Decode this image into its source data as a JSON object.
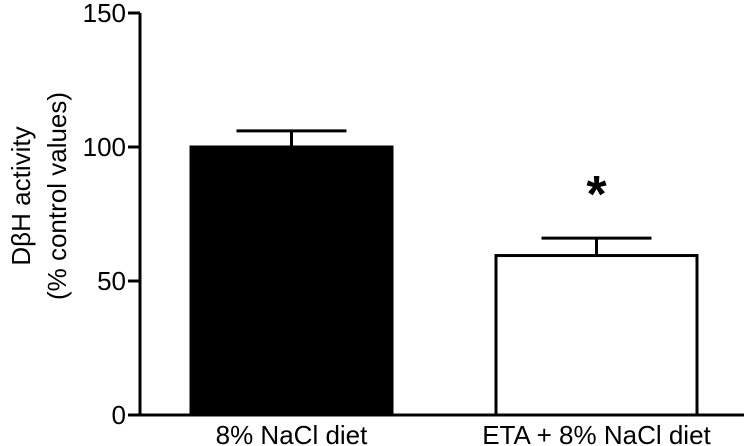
{
  "chart_data": {
    "type": "bar",
    "ylabel_lines": [
      "DβH activity",
      "(% control values)"
    ],
    "xlabel": "",
    "ylim": [
      0,
      150
    ],
    "yticks": [
      0,
      50,
      100,
      150
    ],
    "categories": [
      "8% NaCl diet",
      "ETA + 8% NaCl diet"
    ],
    "values": [
      100,
      59.5
    ],
    "errors": [
      6,
      6.5
    ],
    "bar_colors": [
      "#000000",
      "#ffffff"
    ],
    "annotations": [
      {
        "category_index": 1,
        "text": "*"
      }
    ],
    "grid": false
  }
}
